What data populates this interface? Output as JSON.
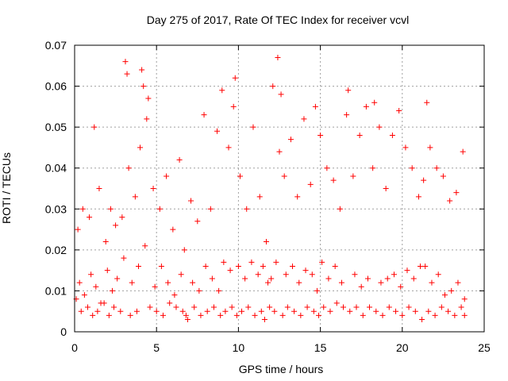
{
  "chart_data": {
    "type": "scatter",
    "title": "Day 275 of 2017, Rate Of TEC Index for receiver vcvl",
    "xlabel": "GPS time / hours",
    "ylabel": "ROTI / TECUs",
    "xlim": [
      0,
      25
    ],
    "ylim": [
      0,
      0.07
    ],
    "xticks": [
      "0",
      "5",
      "10",
      "15",
      "20",
      "25"
    ],
    "yticks": [
      "0",
      "0.01",
      "0.02",
      "0.03",
      "0.04",
      "0.05",
      "0.06",
      "0.07"
    ],
    "grid": true,
    "marker": "+",
    "color": "#ff0000",
    "series": [
      {
        "x": [
          0.1,
          0.3,
          0.6,
          1.0,
          1.3,
          1.6,
          2.0,
          2.3,
          2.6,
          3.0,
          3.1,
          3.2,
          3.5,
          3.9,
          4.1,
          4.2,
          4.3,
          4.5,
          4.9,
          5.3,
          5.7,
          6.1,
          6.5,
          6.8,
          7.2,
          7.6,
          8.0,
          8.4,
          8.8,
          9.1,
          9.5,
          9.8,
          10.0,
          10.4,
          10.8,
          11.2,
          11.5,
          11.8,
          12.0,
          12.3,
          12.4,
          12.6,
          12.9,
          13.3,
          13.7,
          14.1,
          14.5,
          14.8,
          15.1,
          15.5,
          15.9,
          16.3,
          16.7,
          17.1,
          17.5,
          17.9,
          18.3,
          18.7,
          19.1,
          19.5,
          19.9,
          20.3,
          20.7,
          21.1,
          21.4,
          21.5,
          21.8,
          22.2,
          22.6,
          23.0,
          23.4,
          23.8,
          0.2,
          0.5,
          0.9,
          1.2,
          1.5,
          1.9,
          2.2,
          2.5,
          2.9,
          3.3,
          3.7,
          4.0,
          4.4,
          4.8,
          5.2,
          5.6,
          6.0,
          6.4,
          6.7,
          7.1,
          7.5,
          7.9,
          8.3,
          8.7,
          9.0,
          9.4,
          9.7,
          10.1,
          10.5,
          10.9,
          11.3,
          11.7,
          12.1,
          12.5,
          12.8,
          13.2,
          13.6,
          14.0,
          14.4,
          14.7,
          15.0,
          15.4,
          15.8,
          16.2,
          16.6,
          17.0,
          17.4,
          17.8,
          18.2,
          18.6,
          19.0,
          19.4,
          19.8,
          20.2,
          20.6,
          21.0,
          21.3,
          21.7,
          22.1,
          22.5,
          22.9,
          23.3,
          23.7,
          0.4,
          0.8,
          1.1,
          1.4,
          1.8,
          2.1,
          2.4,
          2.8,
          3.4,
          3.8,
          4.6,
          5.0,
          5.4,
          5.8,
          6.2,
          6.6,
          6.9,
          7.3,
          7.7,
          8.1,
          8.5,
          8.9,
          9.2,
          9.6,
          9.9,
          10.2,
          10.6,
          11.0,
          11.4,
          11.6,
          11.9,
          12.2,
          12.7,
          13.0,
          13.4,
          13.8,
          14.2,
          14.6,
          14.9,
          15.2,
          15.6,
          16.0,
          16.4,
          16.8,
          17.2,
          17.6,
          18.0,
          18.4,
          18.8,
          19.2,
          19.6,
          20.0,
          20.4,
          20.8,
          21.2,
          21.6,
          22.0,
          22.4,
          22.8,
          23.2,
          23.6,
          23.8
        ],
        "y": [
          0.008,
          0.012,
          0.009,
          0.014,
          0.011,
          0.007,
          0.015,
          0.01,
          0.013,
          0.018,
          0.066,
          0.063,
          0.012,
          0.016,
          0.064,
          0.06,
          0.021,
          0.057,
          0.011,
          0.016,
          0.012,
          0.009,
          0.014,
          0.004,
          0.012,
          0.01,
          0.016,
          0.013,
          0.01,
          0.017,
          0.015,
          0.062,
          0.016,
          0.013,
          0.017,
          0.014,
          0.016,
          0.012,
          0.013,
          0.017,
          0.067,
          0.058,
          0.014,
          0.016,
          0.012,
          0.015,
          0.014,
          0.01,
          0.017,
          0.013,
          0.016,
          0.012,
          0.059,
          0.014,
          0.011,
          0.013,
          0.056,
          0.012,
          0.013,
          0.014,
          0.011,
          0.015,
          0.013,
          0.016,
          0.016,
          0.056,
          0.012,
          0.014,
          0.009,
          0.01,
          0.012,
          0.008,
          0.025,
          0.03,
          0.028,
          0.05,
          0.035,
          0.022,
          0.03,
          0.026,
          0.028,
          0.04,
          0.033,
          0.045,
          0.052,
          0.035,
          0.03,
          0.038,
          0.025,
          0.042,
          0.02,
          0.032,
          0.027,
          0.053,
          0.03,
          0.049,
          0.059,
          0.045,
          0.055,
          0.038,
          0.03,
          0.05,
          0.033,
          0.022,
          0.06,
          0.044,
          0.038,
          0.047,
          0.033,
          0.052,
          0.036,
          0.055,
          0.048,
          0.04,
          0.037,
          0.03,
          0.053,
          0.038,
          0.048,
          0.055,
          0.04,
          0.05,
          0.035,
          0.048,
          0.054,
          0.045,
          0.04,
          0.033,
          0.037,
          0.045,
          0.04,
          0.038,
          0.032,
          0.034,
          0.044,
          0.005,
          0.006,
          0.004,
          0.005,
          0.007,
          0.004,
          0.006,
          0.005,
          0.004,
          0.005,
          0.006,
          0.005,
          0.004,
          0.007,
          0.006,
          0.005,
          0.003,
          0.006,
          0.004,
          0.005,
          0.006,
          0.004,
          0.005,
          0.006,
          0.004,
          0.005,
          0.006,
          0.004,
          0.005,
          0.003,
          0.006,
          0.005,
          0.004,
          0.006,
          0.005,
          0.004,
          0.006,
          0.005,
          0.004,
          0.006,
          0.005,
          0.007,
          0.006,
          0.005,
          0.006,
          0.004,
          0.006,
          0.005,
          0.004,
          0.006,
          0.005,
          0.004,
          0.006,
          0.005,
          0.003,
          0.005,
          0.004,
          0.006,
          0.005,
          0.004,
          0.006,
          0.004
        ]
      }
    ]
  }
}
